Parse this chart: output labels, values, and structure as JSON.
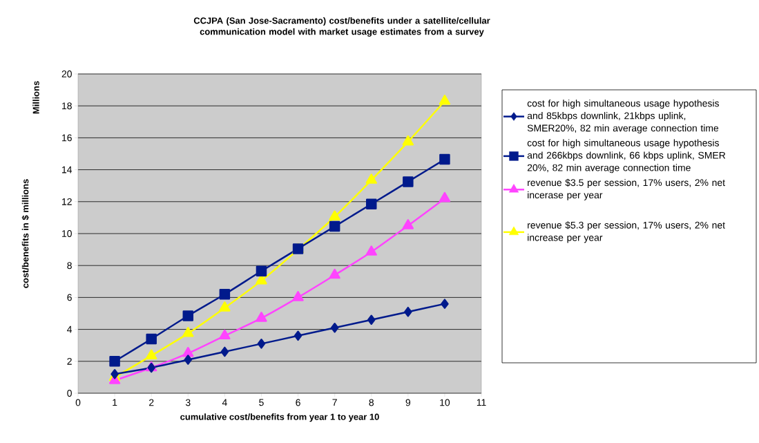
{
  "chart_data": {
    "type": "line",
    "title": "CCJPA (San Jose-Sacramento) cost/benefits under a satellite/cellular communication model with market usage estimates from a survey",
    "xlabel": "cumulative cost/benefits from year 1 to year 10",
    "ylabel": "cost/benefits in $ millions",
    "annotations": [
      "Millions"
    ],
    "x": [
      1,
      2,
      3,
      4,
      5,
      6,
      7,
      8,
      9,
      10
    ],
    "series": [
      {
        "name": "cost for high simultaneous usage hypothesis and 85kbps downlink, 21kbps uplink, SMER20%, 82 min average connection time",
        "color": "#001a8c",
        "marker": "diamond",
        "values": [
          1.2,
          1.6,
          2.1,
          2.6,
          3.1,
          3.6,
          4.1,
          4.6,
          5.1,
          5.6
        ]
      },
      {
        "name": "cost for high simultaneous usage hypothesis and 266kbps downlink, 66 kbps uplink, SMER 20%, 82 min average connection time",
        "color": "#001a8c",
        "marker": "square",
        "values": [
          2.0,
          3.4,
          4.85,
          6.2,
          7.65,
          9.05,
          10.45,
          11.85,
          13.25,
          14.65
        ]
      },
      {
        "name": "revenue $3.5 per session, 17% users, 2% net incerase per year",
        "color": "#ff44ff",
        "marker": "triangle",
        "values": [
          0.8,
          1.6,
          2.5,
          3.6,
          4.7,
          6.0,
          7.4,
          8.85,
          10.5,
          12.2
        ]
      },
      {
        "name": "revenue $5.3 per session, 17% users, 2% net increase per year",
        "color": "#ffff00",
        "marker": "triangle",
        "values": [
          1.0,
          2.35,
          3.75,
          5.35,
          7.05,
          9.0,
          11.05,
          13.35,
          15.75,
          18.3
        ]
      }
    ],
    "xlim": [
      0,
      11
    ],
    "xticks": [
      0,
      1,
      2,
      3,
      4,
      5,
      6,
      7,
      8,
      9,
      10,
      11
    ],
    "ylim": [
      0,
      20
    ],
    "yticks": [
      0,
      2,
      4,
      6,
      8,
      10,
      12,
      14,
      16,
      18,
      20
    ],
    "grid": "y",
    "legend": "right",
    "line_style": "solid"
  }
}
